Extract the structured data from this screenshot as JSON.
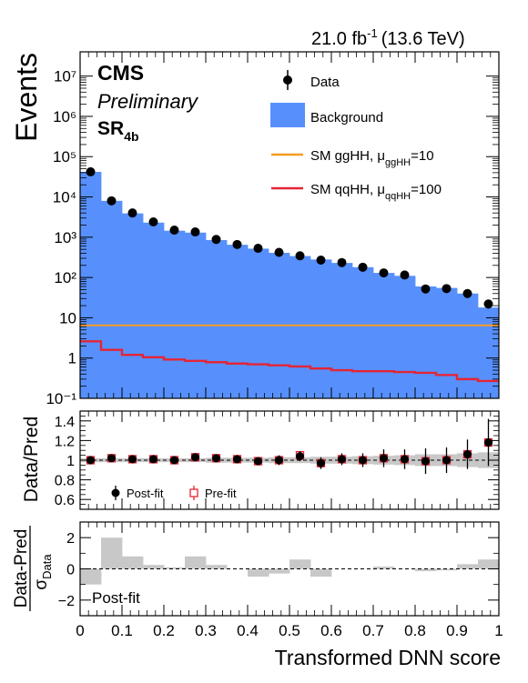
{
  "header": {
    "lumi": "21.0 fb",
    "lumi_exp": "-1",
    "energy": "(13.6 TeV)"
  },
  "labels": {
    "cms": "CMS",
    "preliminary": "Preliminary",
    "region": "SR",
    "region_sub": "4b",
    "postfit_tag": "Post-fit"
  },
  "legend": {
    "data": "Data",
    "background": "Background",
    "gghh_main": "SM ggHH, μ",
    "gghh_sub": "ggHH",
    "gghh_tail": "=10",
    "qqhh_main": "SM qqHH, μ",
    "qqhh_sub": "qqHH",
    "qqhh_tail": "=100",
    "postfit": "Post-fit",
    "prefit": "Pre-fit"
  },
  "colors": {
    "background": "#5790fc",
    "gghh": "#f89c20",
    "qqhh": "#e42536",
    "band": "#c8c8c8",
    "prefit": "#e42536"
  },
  "chart_data": [
    {
      "type": "bar",
      "panel": "main",
      "ylabel": "Events",
      "yscale": "log",
      "ylim": [
        0.1,
        40000000
      ],
      "xlim": [
        0,
        1
      ],
      "ytick_labels": [
        "10⁻¹",
        "1",
        "10",
        "10²",
        "10³",
        "10⁴",
        "10⁵",
        "10⁶",
        "10⁷"
      ],
      "bin_edges": [
        0,
        0.05,
        0.1,
        0.15,
        0.2,
        0.25,
        0.3,
        0.35,
        0.4,
        0.45,
        0.5,
        0.55,
        0.6,
        0.65,
        0.7,
        0.75,
        0.8,
        0.85,
        0.9,
        0.95,
        1.0
      ],
      "x": [
        0.025,
        0.075,
        0.125,
        0.175,
        0.225,
        0.275,
        0.325,
        0.375,
        0.425,
        0.475,
        0.525,
        0.575,
        0.625,
        0.675,
        0.725,
        0.775,
        0.825,
        0.875,
        0.925,
        0.975
      ],
      "series": [
        {
          "name": "Background",
          "kind": "hist",
          "values": [
            42000,
            8000,
            3900,
            2300,
            1450,
            1300,
            850,
            650,
            520,
            410,
            340,
            280,
            230,
            180,
            130,
            110,
            60,
            55,
            40,
            18
          ]
        },
        {
          "name": "Data",
          "kind": "points",
          "values": [
            42000,
            8000,
            4000,
            2400,
            1500,
            1350,
            880,
            660,
            530,
            420,
            345,
            270,
            235,
            180,
            130,
            115,
            52,
            53,
            40,
            22
          ],
          "yerr": [
            200,
            90,
            63,
            49,
            39,
            37,
            30,
            26,
            23,
            20,
            19,
            16,
            15,
            13,
            11,
            11,
            7,
            7,
            6,
            5
          ]
        },
        {
          "name": "SM ggHH, μggHH=10",
          "kind": "step",
          "values": [
            6.5,
            6.5,
            6.5,
            6.5,
            6.5,
            6.5,
            6.5,
            6.5,
            6.5,
            6.5,
            6.5,
            6.5,
            6.5,
            6.5,
            6.5,
            6.5,
            6.5,
            6.5,
            6.5,
            6.5
          ]
        },
        {
          "name": "SM qqHH, μqqHH=100",
          "kind": "step",
          "values": [
            2.6,
            1.6,
            1.2,
            1.05,
            0.92,
            0.85,
            0.79,
            0.73,
            0.7,
            0.66,
            0.62,
            0.55,
            0.5,
            0.47,
            0.47,
            0.45,
            0.43,
            0.38,
            0.3,
            0.27
          ]
        }
      ]
    },
    {
      "type": "scatter",
      "panel": "ratio",
      "ylabel": "Data/Pred",
      "ylim": [
        0.5,
        1.5
      ],
      "yticks": [
        0.6,
        0.8,
        1,
        1.2,
        1.4
      ],
      "ytick_labels": [
        "0.6",
        "0.8",
        "1",
        "1.2",
        "1.4"
      ],
      "x": [
        0.025,
        0.075,
        0.125,
        0.175,
        0.225,
        0.275,
        0.325,
        0.375,
        0.425,
        0.475,
        0.525,
        0.575,
        0.625,
        0.675,
        0.725,
        0.775,
        0.825,
        0.875,
        0.925,
        0.975
      ],
      "band_halfwidth": [
        0.02,
        0.02,
        0.02,
        0.02,
        0.02,
        0.02,
        0.025,
        0.025,
        0.025,
        0.03,
        0.03,
        0.035,
        0.035,
        0.04,
        0.045,
        0.05,
        0.06,
        0.06,
        0.07,
        0.08
      ],
      "series": [
        {
          "name": "Post-fit",
          "values": [
            1.0,
            1.02,
            1.01,
            1.01,
            1.0,
            1.03,
            1.02,
            1.01,
            0.99,
            1.0,
            1.04,
            0.97,
            1.01,
            1.0,
            1.02,
            1.01,
            0.99,
            1.0,
            1.06,
            1.18
          ],
          "yerr": [
            0.01,
            0.02,
            0.02,
            0.02,
            0.03,
            0.03,
            0.03,
            0.04,
            0.04,
            0.05,
            0.05,
            0.06,
            0.06,
            0.07,
            0.09,
            0.1,
            0.13,
            0.13,
            0.15,
            0.24
          ]
        },
        {
          "name": "Pre-fit",
          "values": [
            1.0,
            1.02,
            1.01,
            1.01,
            1.0,
            1.03,
            1.02,
            1.01,
            0.99,
            1.0,
            1.05,
            0.97,
            1.01,
            1.0,
            1.02,
            1.01,
            0.99,
            1.0,
            1.06,
            1.18
          ]
        }
      ]
    },
    {
      "type": "bar",
      "panel": "pull",
      "ylabel": "Data-Pred",
      "ylabel_denominator": "σ",
      "ylabel_denominator_sub": "Data",
      "xlabel": "Transformed DNN score",
      "ylim": [
        -3,
        3
      ],
      "yticks": [
        -2,
        0,
        2
      ],
      "ytick_labels": [
        "−2",
        "0",
        "2"
      ],
      "xticks": [
        0,
        0.1,
        0.2,
        0.3,
        0.4,
        0.5,
        0.6,
        0.7,
        0.8,
        0.9,
        1
      ],
      "xtick_labels": [
        "0",
        "0.1",
        "0.2",
        "0.3",
        "0.4",
        "0.5",
        "0.6",
        "0.7",
        "0.8",
        "0.9",
        "1"
      ],
      "x": [
        0.025,
        0.075,
        0.125,
        0.175,
        0.225,
        0.275,
        0.325,
        0.375,
        0.425,
        0.475,
        0.525,
        0.575,
        0.625,
        0.675,
        0.725,
        0.775,
        0.825,
        0.875,
        0.925,
        0.975
      ],
      "series": [
        {
          "name": "Post-fit",
          "values": [
            -1.0,
            2.0,
            0.8,
            0.25,
            0.1,
            0.8,
            0.25,
            0.0,
            -0.5,
            -0.3,
            0.6,
            -0.5,
            0.0,
            0.0,
            0.15,
            0.0,
            -0.15,
            -0.1,
            0.3,
            0.6
          ]
        }
      ]
    }
  ]
}
